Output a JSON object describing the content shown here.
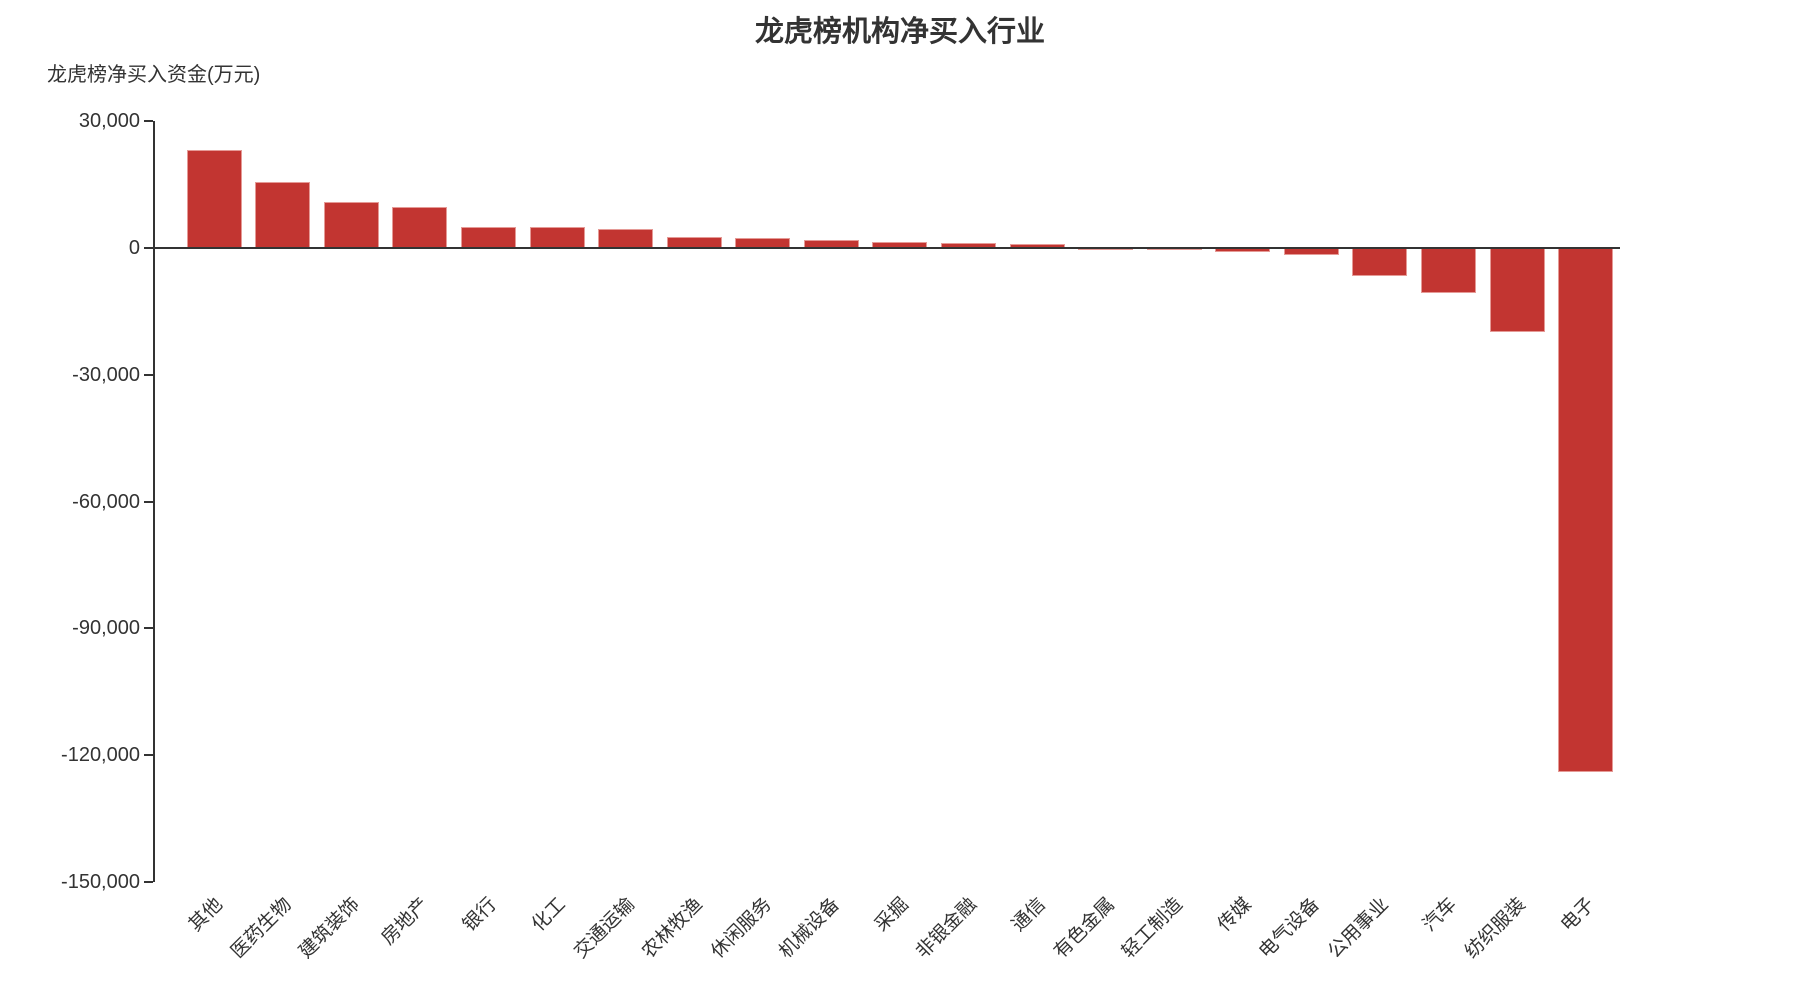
{
  "title": "龙虎榜机构净买入行业",
  "colors": {
    "bar_fill": "#c23531",
    "bar_border": "#e59a96",
    "axis": "#333333",
    "text": "#333333"
  },
  "chart_data": {
    "type": "bar",
    "title": "龙虎榜机构净买入行业",
    "xlabel": "",
    "ylabel": "龙虎榜净买入资金(万元)",
    "unit": "万元",
    "categories": [
      "其他",
      "医药生物",
      "建筑装饰",
      "房地产",
      "银行",
      "化工",
      "交通运输",
      "农林牧渔",
      "休闲服务",
      "机械设备",
      "采掘",
      "非银金融",
      "通信",
      "有色金属",
      "轻工制造",
      "传媒",
      "电气设备",
      "公用事业",
      "汽车",
      "纺织服装",
      "电子"
    ],
    "values": [
      23100,
      15600,
      10800,
      9600,
      5000,
      4900,
      4400,
      2600,
      2400,
      2000,
      1350,
      1100,
      950,
      -150,
      -550,
      -1050,
      -1650,
      -6600,
      -10600,
      -19900,
      -124000
    ],
    "ylim": [
      -150000,
      30000
    ],
    "ytick_interval": 30000,
    "ytick_values": [
      30000,
      0,
      -30000,
      -60000,
      -90000,
      -120000,
      -150000
    ],
    "ytick_labels": [
      "30,000",
      "0",
      "-30,000",
      "-60,000",
      "-90,000",
      "-120,000",
      "-150,000"
    ],
    "grid": false,
    "legend": false,
    "bar_color": "#c23531",
    "x_label_rotation": 45
  }
}
